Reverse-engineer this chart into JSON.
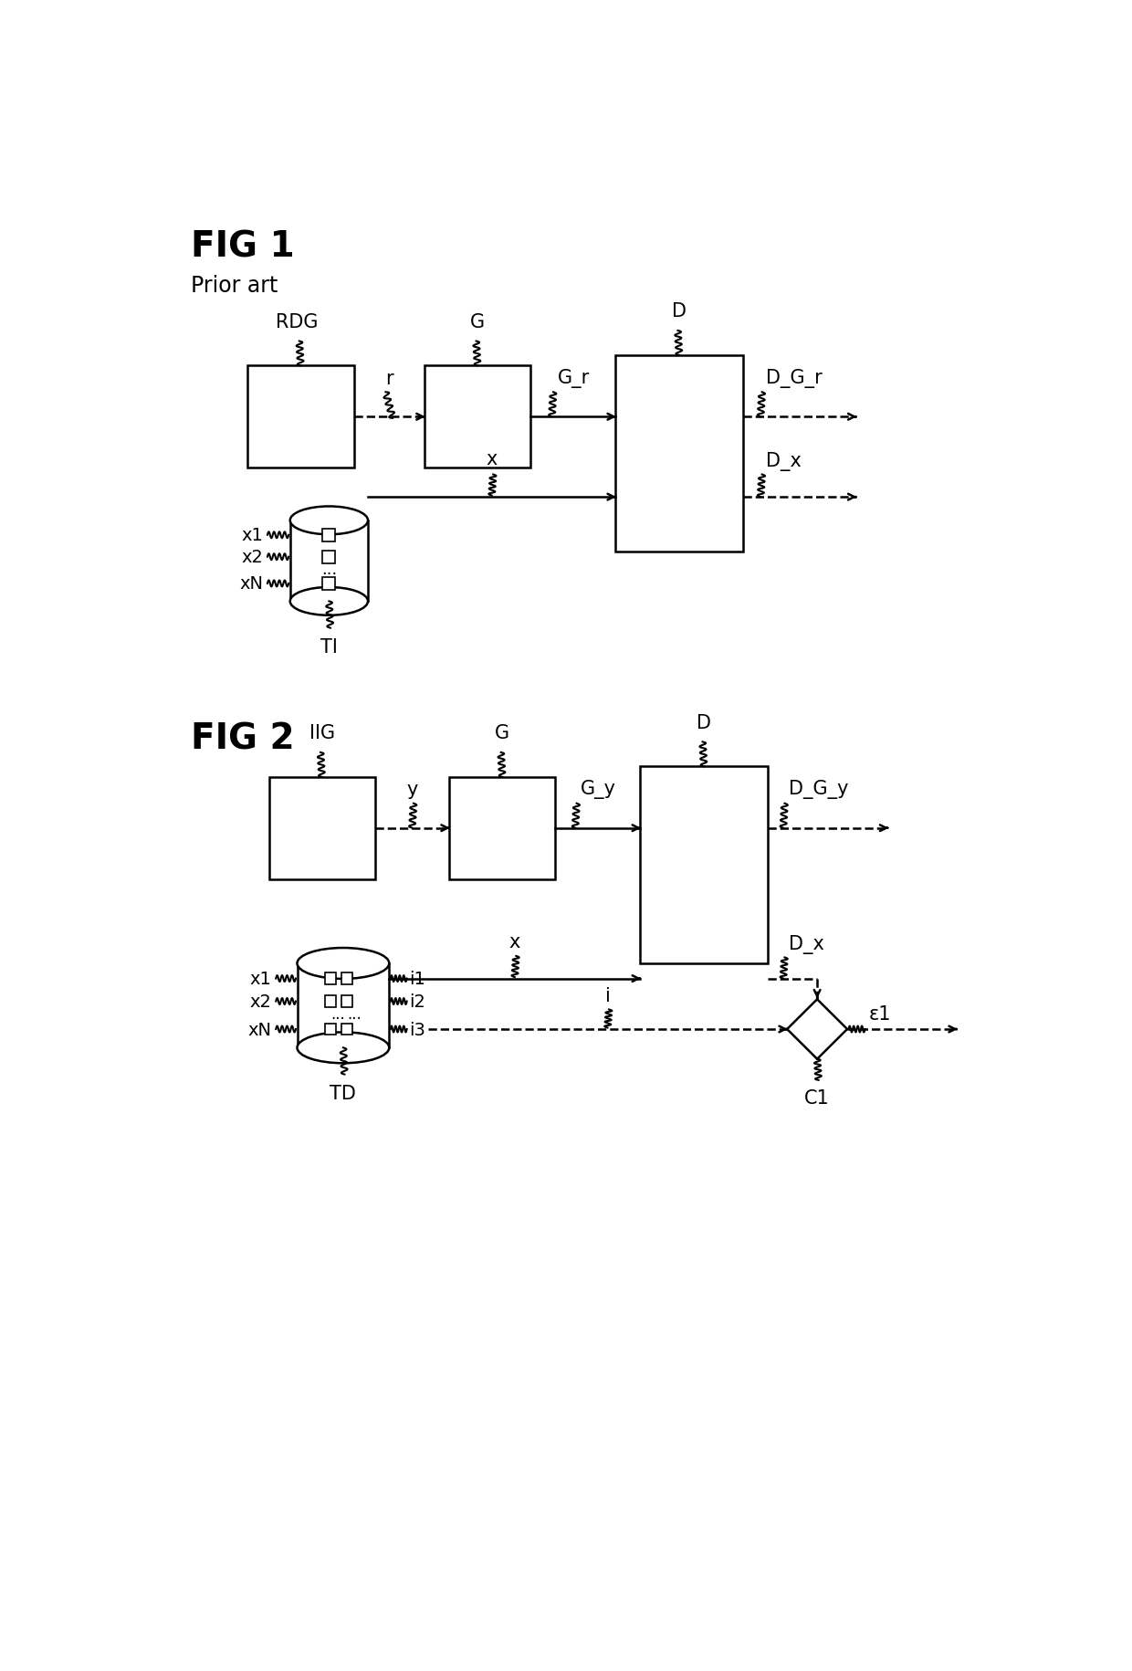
{
  "fig1_title": "FIG 1",
  "fig1_subtitle": "Prior art",
  "fig2_title": "FIG 2",
  "background_color": "#ffffff",
  "line_color": "#000000",
  "lw": 1.8,
  "font_size_title": 28,
  "font_size_label": 15,
  "font_size_subtitle": 17
}
